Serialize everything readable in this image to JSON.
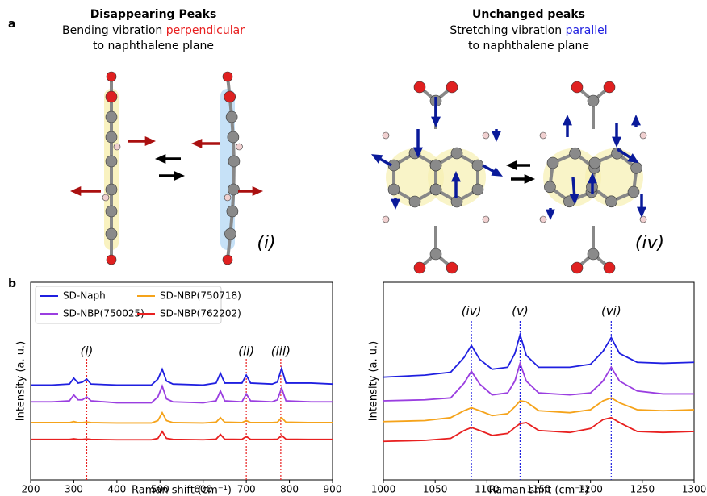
{
  "figure": {
    "panel_labels": [
      "a",
      "b"
    ],
    "left_scheme": {
      "title": "Disappearing Peaks",
      "line1": [
        "Bending vibration ",
        "perpendicular"
      ],
      "line2": "to naphthalene plane",
      "mode_label": "(i)"
    },
    "right_scheme": {
      "title": "Unchanged peaks",
      "line1": [
        "Stretching vibration ",
        "parallel"
      ],
      "line2": "to naphthalene plane",
      "mode_label": "(iv)"
    }
  },
  "chart_data": [
    {
      "type": "line",
      "xlabel": "Raman shift (cm⁻¹)",
      "ylabel": "Intensity (a. u.)",
      "x": [
        200,
        250,
        290,
        300,
        310,
        320,
        330,
        340,
        400,
        480,
        495,
        505,
        515,
        530,
        600,
        630,
        640,
        650,
        690,
        700,
        710,
        760,
        772,
        782,
        792,
        850,
        900
      ],
      "series": [
        {
          "name": "SD-Naph",
          "color": "#1f1fe0",
          "values": [
            4.8,
            4.8,
            4.85,
            5.15,
            4.9,
            4.95,
            5.1,
            4.85,
            4.8,
            4.8,
            5.1,
            5.6,
            5.0,
            4.85,
            4.8,
            4.9,
            5.4,
            4.9,
            4.9,
            5.3,
            4.9,
            4.85,
            4.95,
            5.65,
            4.9,
            4.9,
            4.85
          ]
        },
        {
          "name": "SD-NBP(750025)",
          "color": "#9a3ee0",
          "values": [
            3.95,
            3.95,
            4.0,
            4.3,
            4.05,
            4.05,
            4.2,
            4.0,
            3.9,
            3.9,
            4.2,
            4.75,
            4.1,
            3.95,
            3.9,
            4.0,
            4.5,
            4.0,
            3.95,
            4.35,
            4.0,
            3.95,
            4.05,
            4.65,
            4.0,
            3.95,
            3.95
          ]
        },
        {
          "name": "SD-NBP(750718)",
          "color": "#f5a31a",
          "values": [
            2.9,
            2.9,
            2.9,
            2.95,
            2.9,
            2.9,
            2.92,
            2.9,
            2.88,
            2.88,
            3.0,
            3.4,
            3.0,
            2.9,
            2.88,
            2.92,
            3.15,
            2.92,
            2.9,
            3.0,
            2.9,
            2.9,
            2.92,
            3.15,
            2.92,
            2.9,
            2.9
          ]
        },
        {
          "name": "SD-NBP(762202)",
          "color": "#e82020",
          "values": [
            2.05,
            2.05,
            2.05,
            2.08,
            2.05,
            2.05,
            2.07,
            2.05,
            2.03,
            2.03,
            2.1,
            2.45,
            2.1,
            2.05,
            2.03,
            2.06,
            2.3,
            2.06,
            2.05,
            2.2,
            2.05,
            2.05,
            2.06,
            2.25,
            2.06,
            2.05,
            2.05
          ]
        }
      ],
      "xlim": [
        200,
        900
      ],
      "xticks": [
        200,
        300,
        400,
        500,
        600,
        700,
        800,
        900
      ],
      "ylim": [
        0,
        10
      ],
      "legend": "upper left",
      "annotations": [
        {
          "x": 330,
          "label": "(i)",
          "color": "#e82020"
        },
        {
          "x": 700,
          "label": "(ii)",
          "color": "#e82020"
        },
        {
          "x": 780,
          "label": "(iii)",
          "color": "#e82020"
        }
      ]
    },
    {
      "type": "line",
      "xlabel": "Raman shift (cm⁻¹)",
      "ylabel": "Intensity (a. u.)",
      "x": [
        1000,
        1040,
        1065,
        1078,
        1085,
        1093,
        1105,
        1120,
        1127,
        1132,
        1138,
        1150,
        1180,
        1200,
        1212,
        1220,
        1228,
        1245,
        1270,
        1300
      ],
      "series": [
        {
          "color": "#1f1fe0",
          "values": [
            5.2,
            5.3,
            5.45,
            6.2,
            6.8,
            6.1,
            5.6,
            5.7,
            6.4,
            7.35,
            6.3,
            5.7,
            5.7,
            5.85,
            6.5,
            7.2,
            6.4,
            5.95,
            5.9,
            5.95
          ]
        },
        {
          "color": "#9a3ee0",
          "values": [
            4.0,
            4.05,
            4.15,
            4.9,
            5.5,
            4.85,
            4.3,
            4.4,
            5.0,
            5.9,
            5.0,
            4.4,
            4.3,
            4.4,
            5.0,
            5.7,
            5.0,
            4.5,
            4.35,
            4.35
          ]
        },
        {
          "color": "#f5a31a",
          "values": [
            2.95,
            3.0,
            3.15,
            3.5,
            3.65,
            3.5,
            3.25,
            3.35,
            3.7,
            4.0,
            3.95,
            3.5,
            3.4,
            3.55,
            4.0,
            4.15,
            3.9,
            3.55,
            3.5,
            3.55
          ]
        },
        {
          "color": "#e82020",
          "values": [
            1.95,
            2.0,
            2.1,
            2.5,
            2.65,
            2.5,
            2.25,
            2.35,
            2.65,
            2.85,
            2.9,
            2.5,
            2.4,
            2.6,
            3.05,
            3.15,
            2.9,
            2.45,
            2.4,
            2.45
          ]
        }
      ],
      "xlim": [
        1000,
        1300
      ],
      "xticks": [
        1000,
        1050,
        1100,
        1150,
        1200,
        1250,
        1300
      ],
      "ylim": [
        0,
        10
      ],
      "annotations": [
        {
          "x": 1085,
          "label": "(iv)",
          "color": "#1f1fe0"
        },
        {
          "x": 1132,
          "label": "(v)",
          "color": "#1f1fe0"
        },
        {
          "x": 1220,
          "label": "(vi)",
          "color": "#1f1fe0"
        }
      ]
    }
  ]
}
